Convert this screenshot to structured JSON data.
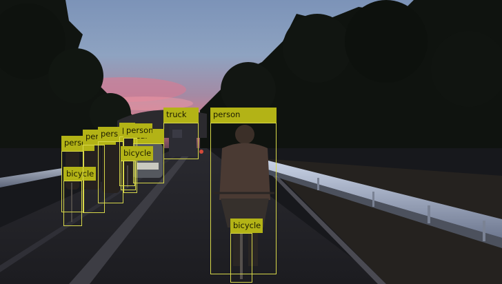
{
  "colors": {
    "box_border": "#d8d84a",
    "label_bg": "#b3b316",
    "label_text": "#1b1b00"
  },
  "detections": [
    {
      "id": "cyclist-person",
      "label": "person"
    },
    {
      "id": "cyclist-bicycle",
      "label": "bicycle"
    },
    {
      "id": "truck",
      "label": "truck"
    },
    {
      "id": "car",
      "label": "car"
    },
    {
      "id": "left-person-1",
      "label": "person"
    },
    {
      "id": "left-bicycle-1",
      "label": "bicycle"
    },
    {
      "id": "left-person-2",
      "label": "person"
    },
    {
      "id": "left-person-3",
      "label": "pers"
    },
    {
      "id": "left-person-4",
      "label": "pe"
    },
    {
      "id": "left-person-5",
      "label": "person"
    },
    {
      "id": "left-bicycle-2",
      "label": "bicycle"
    }
  ]
}
